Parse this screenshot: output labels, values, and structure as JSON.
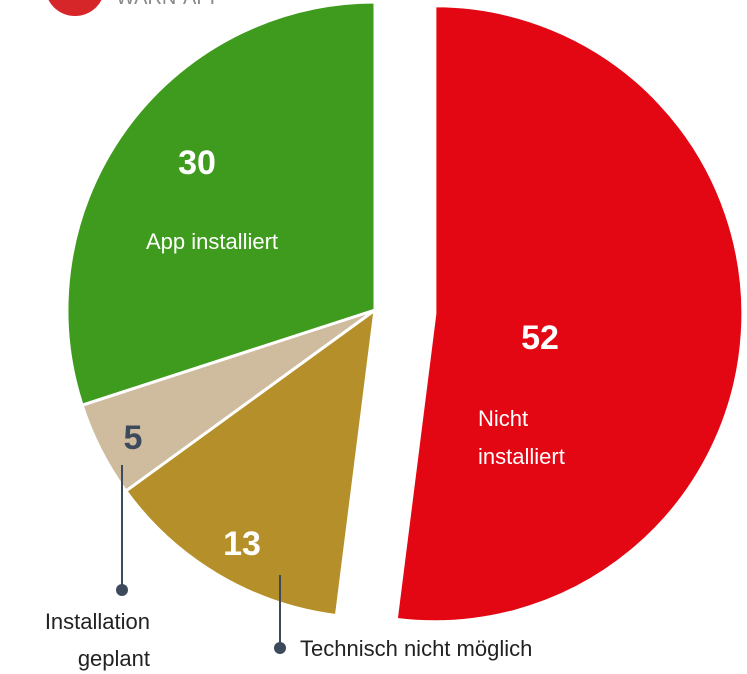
{
  "chart_data": {
    "type": "pie",
    "title": "WARN-APP",
    "categories": [
      "Nicht installiert",
      "Technisch nicht möglich",
      "Installation geplant",
      "App installiert"
    ],
    "values": [
      52,
      13,
      5,
      30
    ],
    "colors": [
      "#e30613",
      "#b58f2a",
      "#cfbc9f",
      "#3f9b1d"
    ],
    "explode": [
      true,
      false,
      false,
      false
    ]
  }
}
